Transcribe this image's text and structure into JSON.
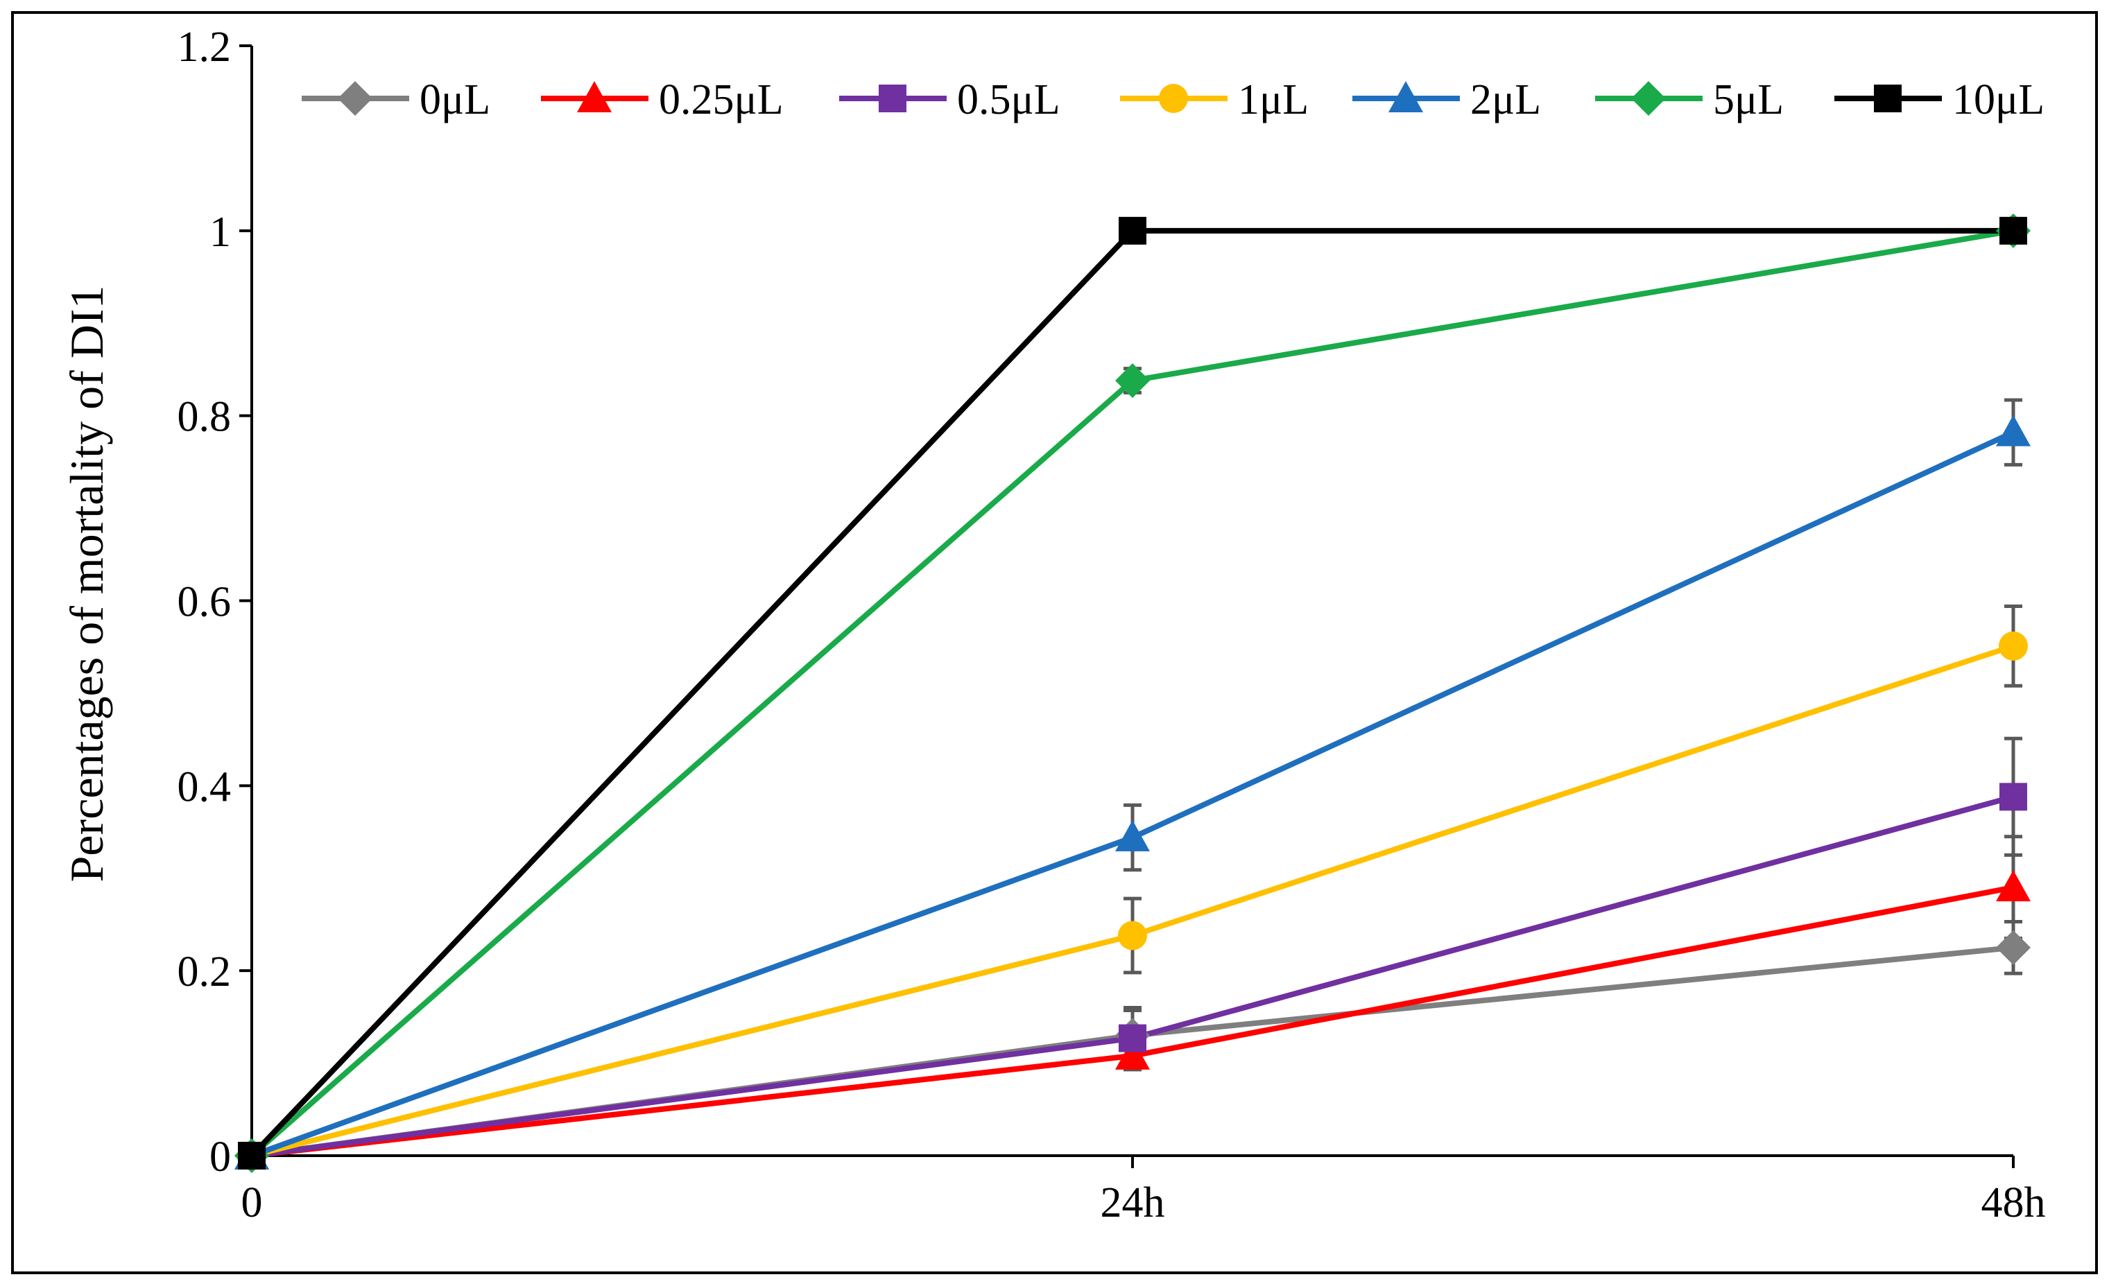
{
  "chart_data": {
    "type": "line",
    "categories": [
      "0",
      "24h",
      "48h"
    ],
    "ylabel": "Percentages of mortality of DI1",
    "xlabel": "",
    "title": "",
    "ylim": [
      0,
      1.2
    ],
    "yticks": [
      "0",
      "0.2",
      "0.4",
      "0.6",
      "0.8",
      "1",
      "1.2"
    ],
    "legend_position": "top",
    "grid": false,
    "series": [
      {
        "name": "0μL",
        "color": "#7f7f7f",
        "marker": "diamond",
        "values": [
          0,
          0.13,
          0.225
        ],
        "errors": [
          0,
          0.03,
          0.028
        ]
      },
      {
        "name": "0.25μL",
        "color": "#ff0000",
        "marker": "triangle",
        "values": [
          0,
          0.108,
          0.29
        ],
        "errors": [
          0,
          0.015,
          0.055
        ]
      },
      {
        "name": "0.5μL",
        "color": "#7030a0",
        "marker": "square",
        "values": [
          0,
          0.127,
          0.388
        ],
        "errors": [
          0,
          0.03,
          0.063
        ]
      },
      {
        "name": "1μL",
        "color": "#ffc000",
        "marker": "circle",
        "values": [
          0,
          0.238,
          0.551
        ],
        "errors": [
          0,
          0.04,
          0.043
        ]
      },
      {
        "name": "2μL",
        "color": "#1f6fbf",
        "marker": "triangle",
        "values": [
          0,
          0.344,
          0.782
        ],
        "errors": [
          0,
          0.035,
          0.035
        ]
      },
      {
        "name": "5μL",
        "color": "#1aaa4a",
        "marker": "diamond",
        "values": [
          0,
          0.838,
          1.0
        ],
        "errors": [
          0,
          0.013,
          0
        ]
      },
      {
        "name": "10μL",
        "color": "#000000",
        "marker": "square",
        "values": [
          0,
          1.0,
          1.0
        ],
        "errors": [
          0,
          0,
          0
        ]
      }
    ]
  }
}
